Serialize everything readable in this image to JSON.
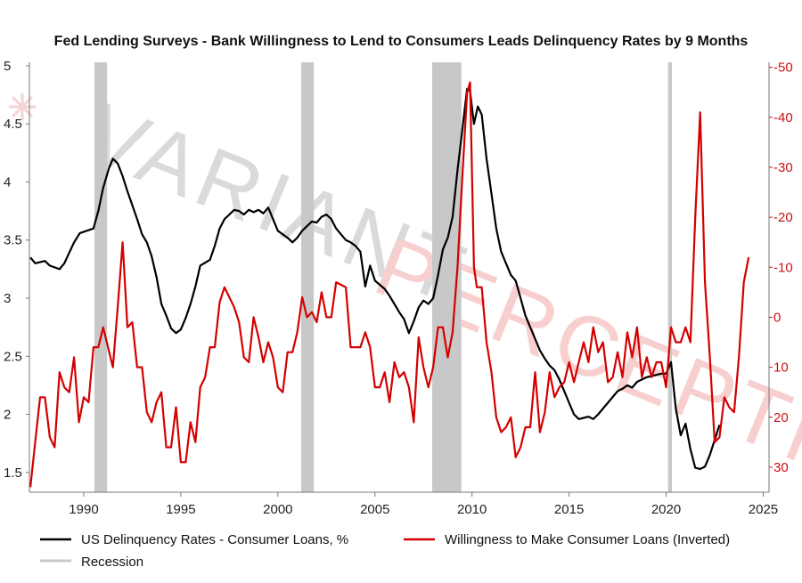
{
  "chart_data": {
    "type": "line",
    "title": "Fed Lending Surveys - Bank Willingness to Lend to Consumers Leads Delinquency Rates by 9 Months",
    "watermark": [
      "VARIANT",
      "PERCEPTION"
    ],
    "colors": {
      "delinquency": "#000000",
      "willingness": "#d40000",
      "recession": "#c8c8c8",
      "right_axis": "#cc1111",
      "watermark": "#e8b8b8"
    },
    "grid": false,
    "legend_placement": "bottom",
    "x_axis": {
      "range": [
        1987.2,
        2025.3
      ],
      "ticks": [
        1990,
        1995,
        2000,
        2005,
        2010,
        2015,
        2020,
        2025
      ]
    },
    "y_left": {
      "range": [
        1.33,
        5.03
      ],
      "ticks": [
        1.5,
        2,
        2.5,
        3,
        3.5,
        4,
        4.5,
        5
      ],
      "tick_labels": [
        "1.5",
        "2",
        "2.5",
        "3",
        "3.5",
        "4",
        "4.5",
        "5"
      ]
    },
    "y_right": {
      "inverted": true,
      "range": [
        -51,
        35
      ],
      "ticks": [
        -50,
        -40,
        -30,
        -20,
        -10,
        0,
        10,
        20,
        30
      ],
      "tick_labels": [
        "-50",
        "-40",
        "-30",
        "-20",
        "-10",
        "0",
        "10",
        "20",
        "30"
      ]
    },
    "recessions": [
      [
        1990.55,
        1991.2
      ],
      [
        2001.2,
        2001.85
      ],
      [
        2007.95,
        2009.45
      ],
      [
        2020.1,
        2020.3
      ]
    ],
    "series": [
      {
        "name": "US Delinquency Rates - Consumer Loans, %",
        "axis": "left",
        "points": [
          [
            1987.25,
            3.35
          ],
          [
            1987.5,
            3.3
          ],
          [
            1988.0,
            3.32
          ],
          [
            1988.25,
            3.28
          ],
          [
            1988.75,
            3.25
          ],
          [
            1989.0,
            3.3
          ],
          [
            1989.5,
            3.48
          ],
          [
            1989.8,
            3.56
          ],
          [
            1990.5,
            3.6
          ],
          [
            1990.75,
            3.75
          ],
          [
            1991.0,
            3.95
          ],
          [
            1991.3,
            4.12
          ],
          [
            1991.5,
            4.2
          ],
          [
            1991.75,
            4.16
          ],
          [
            1992.0,
            4.05
          ],
          [
            1992.25,
            3.92
          ],
          [
            1992.5,
            3.8
          ],
          [
            1992.75,
            3.68
          ],
          [
            1993.0,
            3.55
          ],
          [
            1993.25,
            3.48
          ],
          [
            1993.5,
            3.36
          ],
          [
            1993.75,
            3.18
          ],
          [
            1994.0,
            2.95
          ],
          [
            1994.25,
            2.85
          ],
          [
            1994.5,
            2.74
          ],
          [
            1994.75,
            2.7
          ],
          [
            1995.0,
            2.73
          ],
          [
            1995.25,
            2.83
          ],
          [
            1995.5,
            2.95
          ],
          [
            1995.75,
            3.1
          ],
          [
            1996.0,
            3.28
          ],
          [
            1996.5,
            3.33
          ],
          [
            1996.75,
            3.45
          ],
          [
            1997.0,
            3.6
          ],
          [
            1997.25,
            3.68
          ],
          [
            1997.5,
            3.72
          ],
          [
            1997.75,
            3.76
          ],
          [
            1998.0,
            3.75
          ],
          [
            1998.25,
            3.72
          ],
          [
            1998.5,
            3.76
          ],
          [
            1998.75,
            3.74
          ],
          [
            1999.0,
            3.76
          ],
          [
            1999.25,
            3.73
          ],
          [
            1999.5,
            3.78
          ],
          [
            1999.75,
            3.68
          ],
          [
            2000.0,
            3.58
          ],
          [
            2000.5,
            3.52
          ],
          [
            2000.75,
            3.48
          ],
          [
            2001.0,
            3.52
          ],
          [
            2001.25,
            3.58
          ],
          [
            2001.5,
            3.62
          ],
          [
            2001.75,
            3.66
          ],
          [
            2002.0,
            3.65
          ],
          [
            2002.25,
            3.7
          ],
          [
            2002.5,
            3.72
          ],
          [
            2002.75,
            3.68
          ],
          [
            2003.0,
            3.6
          ],
          [
            2003.25,
            3.55
          ],
          [
            2003.5,
            3.5
          ],
          [
            2003.75,
            3.48
          ],
          [
            2004.0,
            3.45
          ],
          [
            2004.25,
            3.4
          ],
          [
            2004.5,
            3.1
          ],
          [
            2004.75,
            3.28
          ],
          [
            2005.0,
            3.15
          ],
          [
            2005.5,
            3.08
          ],
          [
            2005.75,
            3.02
          ],
          [
            2006.0,
            2.95
          ],
          [
            2006.25,
            2.88
          ],
          [
            2006.5,
            2.82
          ],
          [
            2006.75,
            2.7
          ],
          [
            2007.0,
            2.8
          ],
          [
            2007.25,
            2.92
          ],
          [
            2007.5,
            2.98
          ],
          [
            2007.75,
            2.95
          ],
          [
            2008.0,
            3.0
          ],
          [
            2008.25,
            3.2
          ],
          [
            2008.5,
            3.42
          ],
          [
            2008.75,
            3.52
          ],
          [
            2009.0,
            3.7
          ],
          [
            2009.25,
            4.1
          ],
          [
            2009.5,
            4.45
          ],
          [
            2009.75,
            4.8
          ],
          [
            2009.9,
            4.78
          ],
          [
            2010.1,
            4.5
          ],
          [
            2010.3,
            4.65
          ],
          [
            2010.5,
            4.58
          ],
          [
            2010.75,
            4.2
          ],
          [
            2011.0,
            3.9
          ],
          [
            2011.25,
            3.6
          ],
          [
            2011.5,
            3.4
          ],
          [
            2011.75,
            3.3
          ],
          [
            2012.0,
            3.2
          ],
          [
            2012.25,
            3.15
          ],
          [
            2012.5,
            3.0
          ],
          [
            2012.75,
            2.85
          ],
          [
            2013.0,
            2.75
          ],
          [
            2013.25,
            2.65
          ],
          [
            2013.5,
            2.55
          ],
          [
            2013.75,
            2.48
          ],
          [
            2014.0,
            2.42
          ],
          [
            2014.25,
            2.38
          ],
          [
            2014.5,
            2.3
          ],
          [
            2014.75,
            2.2
          ],
          [
            2015.0,
            2.1
          ],
          [
            2015.25,
            2.0
          ],
          [
            2015.5,
            1.96
          ],
          [
            2015.75,
            1.97
          ],
          [
            2016.0,
            1.98
          ],
          [
            2016.25,
            1.96
          ],
          [
            2016.5,
            2.0
          ],
          [
            2016.75,
            2.05
          ],
          [
            2017.0,
            2.1
          ],
          [
            2017.25,
            2.15
          ],
          [
            2017.5,
            2.2
          ],
          [
            2017.75,
            2.22
          ],
          [
            2018.0,
            2.25
          ],
          [
            2018.25,
            2.23
          ],
          [
            2018.5,
            2.28
          ],
          [
            2018.75,
            2.3
          ],
          [
            2019.0,
            2.32
          ],
          [
            2019.25,
            2.33
          ],
          [
            2019.5,
            2.34
          ],
          [
            2019.75,
            2.35
          ],
          [
            2020.0,
            2.35
          ],
          [
            2020.25,
            2.45
          ],
          [
            2020.5,
            2.05
          ],
          [
            2020.75,
            1.82
          ],
          [
            2021.0,
            1.92
          ],
          [
            2021.25,
            1.7
          ],
          [
            2021.5,
            1.54
          ],
          [
            2021.75,
            1.53
          ],
          [
            2022.0,
            1.55
          ],
          [
            2022.25,
            1.65
          ],
          [
            2022.5,
            1.78
          ],
          [
            2022.75,
            1.91
          ]
        ]
      },
      {
        "name": "Willingness to Make Consumer Loans (Inverted)",
        "axis": "right",
        "points": [
          [
            1987.25,
            34
          ],
          [
            1987.5,
            25
          ],
          [
            1987.75,
            16
          ],
          [
            1988.0,
            16
          ],
          [
            1988.25,
            24
          ],
          [
            1988.5,
            26
          ],
          [
            1988.75,
            11
          ],
          [
            1989.0,
            14
          ],
          [
            1989.25,
            15
          ],
          [
            1989.5,
            8
          ],
          [
            1989.75,
            21
          ],
          [
            1990.0,
            16
          ],
          [
            1990.25,
            17
          ],
          [
            1990.5,
            6
          ],
          [
            1990.75,
            6
          ],
          [
            1991.0,
            2
          ],
          [
            1991.25,
            6
          ],
          [
            1991.5,
            10
          ],
          [
            1991.75,
            -2
          ],
          [
            1992.0,
            -15
          ],
          [
            1992.25,
            2
          ],
          [
            1992.5,
            1
          ],
          [
            1992.75,
            10
          ],
          [
            1993.0,
            10
          ],
          [
            1993.25,
            19
          ],
          [
            1993.5,
            21
          ],
          [
            1993.75,
            17
          ],
          [
            1994.0,
            15
          ],
          [
            1994.25,
            26
          ],
          [
            1994.5,
            26
          ],
          [
            1994.75,
            18
          ],
          [
            1995.0,
            29
          ],
          [
            1995.25,
            29
          ],
          [
            1995.5,
            21
          ],
          [
            1995.75,
            25
          ],
          [
            1996.0,
            14
          ],
          [
            1996.25,
            12
          ],
          [
            1996.5,
            6
          ],
          [
            1996.75,
            6
          ],
          [
            1997.0,
            -3
          ],
          [
            1997.25,
            -6
          ],
          [
            1997.5,
            -4
          ],
          [
            1997.75,
            -2
          ],
          [
            1998.0,
            1
          ],
          [
            1998.25,
            8
          ],
          [
            1998.5,
            9
          ],
          [
            1998.75,
            0
          ],
          [
            1999.0,
            4
          ],
          [
            1999.25,
            9
          ],
          [
            1999.5,
            5
          ],
          [
            1999.75,
            8
          ],
          [
            2000.0,
            14
          ],
          [
            2000.25,
            15
          ],
          [
            2000.5,
            7
          ],
          [
            2000.75,
            7
          ],
          [
            2001.0,
            3
          ],
          [
            2001.25,
            -4
          ],
          [
            2001.5,
            0
          ],
          [
            2001.75,
            -1
          ],
          [
            2002.0,
            1
          ],
          [
            2002.25,
            -5
          ],
          [
            2002.5,
            0
          ],
          [
            2002.75,
            0
          ],
          [
            2003.0,
            -7
          ],
          [
            2003.5,
            -6
          ],
          [
            2003.75,
            6
          ],
          [
            2004.0,
            6
          ],
          [
            2004.25,
            6
          ],
          [
            2004.5,
            3
          ],
          [
            2004.75,
            6
          ],
          [
            2005.0,
            14
          ],
          [
            2005.25,
            14
          ],
          [
            2005.5,
            11
          ],
          [
            2005.75,
            17
          ],
          [
            2006.0,
            9
          ],
          [
            2006.25,
            12
          ],
          [
            2006.5,
            11
          ],
          [
            2006.75,
            14
          ],
          [
            2007.0,
            21
          ],
          [
            2007.25,
            4
          ],
          [
            2007.5,
            10
          ],
          [
            2007.75,
            14
          ],
          [
            2008.0,
            10
          ],
          [
            2008.25,
            2
          ],
          [
            2008.5,
            2
          ],
          [
            2008.75,
            8
          ],
          [
            2009.0,
            3
          ],
          [
            2009.25,
            -10
          ],
          [
            2009.5,
            -28
          ],
          [
            2009.75,
            -45
          ],
          [
            2009.9,
            -47
          ],
          [
            2010.1,
            -10
          ],
          [
            2010.25,
            -6
          ],
          [
            2010.5,
            -6
          ],
          [
            2010.75,
            5
          ],
          [
            2011.0,
            11
          ],
          [
            2011.25,
            20
          ],
          [
            2011.5,
            23
          ],
          [
            2011.75,
            22
          ],
          [
            2012.0,
            20
          ],
          [
            2012.25,
            28
          ],
          [
            2012.5,
            26
          ],
          [
            2012.75,
            22
          ],
          [
            2013.0,
            22
          ],
          [
            2013.25,
            11
          ],
          [
            2013.5,
            23
          ],
          [
            2013.75,
            19
          ],
          [
            2014.0,
            11
          ],
          [
            2014.25,
            16
          ],
          [
            2014.5,
            14
          ],
          [
            2014.75,
            13
          ],
          [
            2015.0,
            9
          ],
          [
            2015.25,
            13
          ],
          [
            2015.5,
            9
          ],
          [
            2015.75,
            5
          ],
          [
            2016.0,
            9
          ],
          [
            2016.25,
            2
          ],
          [
            2016.5,
            7
          ],
          [
            2016.75,
            5
          ],
          [
            2017.0,
            13
          ],
          [
            2017.25,
            12
          ],
          [
            2017.5,
            7
          ],
          [
            2017.75,
            12
          ],
          [
            2018.0,
            3
          ],
          [
            2018.25,
            8
          ],
          [
            2018.5,
            2
          ],
          [
            2018.75,
            12
          ],
          [
            2019.0,
            8
          ],
          [
            2019.25,
            12
          ],
          [
            2019.5,
            9
          ],
          [
            2019.75,
            9
          ],
          [
            2020.0,
            14
          ],
          [
            2020.25,
            2
          ],
          [
            2020.5,
            5
          ],
          [
            2020.75,
            5
          ],
          [
            2021.0,
            2
          ],
          [
            2021.25,
            5
          ],
          [
            2021.5,
            -20
          ],
          [
            2021.75,
            -41
          ],
          [
            2022.0,
            -7
          ],
          [
            2022.25,
            8
          ],
          [
            2022.5,
            25
          ],
          [
            2022.75,
            24
          ],
          [
            2023.0,
            16
          ],
          [
            2023.25,
            18
          ],
          [
            2023.5,
            19
          ],
          [
            2023.75,
            8
          ],
          [
            2024.0,
            -7
          ],
          [
            2024.25,
            -12
          ]
        ]
      }
    ],
    "legend": [
      {
        "label": "US Delinquency Rates - Consumer Loans, %",
        "color": "#000000"
      },
      {
        "label": "Willingness to Make Consumer Loans (Inverted)",
        "color": "#d40000"
      },
      {
        "label": "Recession",
        "color": "#c8c8c8"
      }
    ]
  }
}
